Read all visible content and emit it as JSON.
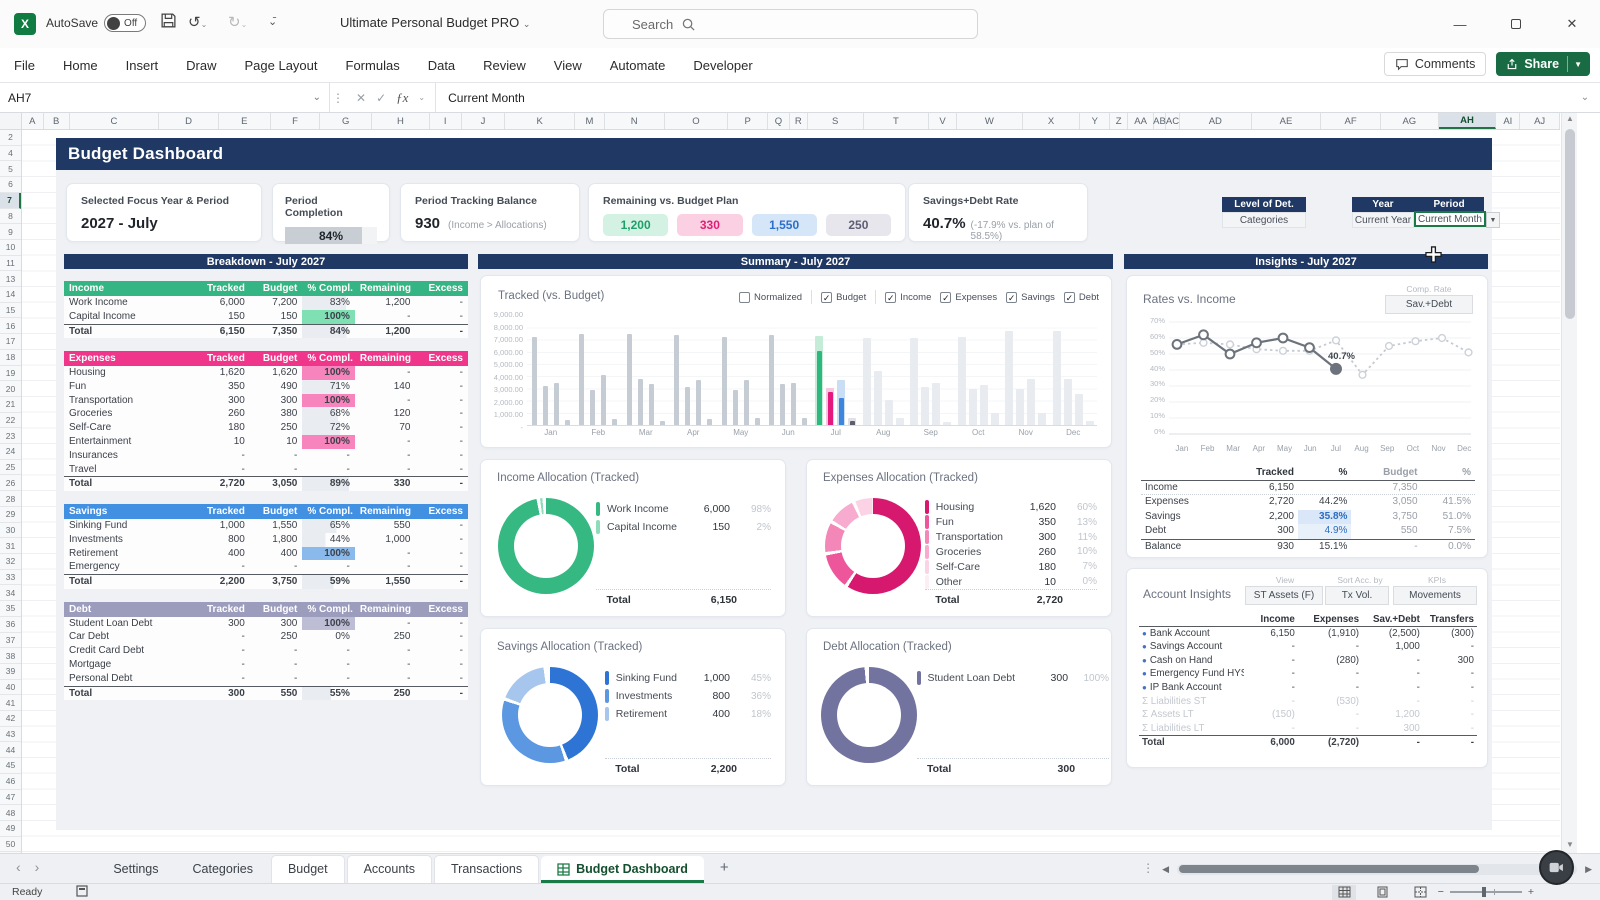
{
  "titlebar": {
    "autosave_label": "AutoSave",
    "autosave_state": "Off",
    "doc_title": "Ultimate Personal Budget PRO",
    "search_placeholder": "Search"
  },
  "ribbon": {
    "tabs": [
      "File",
      "Home",
      "Insert",
      "Draw",
      "Page Layout",
      "Formulas",
      "Data",
      "Review",
      "View",
      "Automate",
      "Developer"
    ],
    "comments_label": "Comments",
    "share_label": "Share"
  },
  "formula_bar": {
    "name_box": "AH7",
    "value": "Current Month"
  },
  "grid": {
    "columns": [
      "A",
      "B",
      "C",
      "D",
      "E",
      "F",
      "G",
      "H",
      "I",
      "J",
      "K",
      "M",
      "N",
      "O",
      "P",
      "Q",
      "R",
      "S",
      "T",
      "V",
      "W",
      "X",
      "Y",
      "Z",
      "AA",
      "AB",
      "AC",
      "AD",
      "AE",
      "AF",
      "AG",
      "AH",
      "AI",
      "AJ"
    ],
    "active_column": "AH",
    "row_start": 2,
    "row_end": 50,
    "hidden_rows": [
      3,
      12,
      27
    ],
    "active_row": 7
  },
  "dashboard": {
    "title": "Budget Dashboard",
    "kpis": {
      "focus": {
        "label": "Selected Focus Year & Period",
        "value": "2027 - July"
      },
      "completion": {
        "label": "Period Completion",
        "value": "84%",
        "pct": 84
      },
      "balance": {
        "label": "Period Tracking Balance",
        "value": "930",
        "note": "(Income > Allocations)"
      },
      "remaining": {
        "label": "Remaining vs. Budget Plan",
        "chips": [
          {
            "value": "1,200",
            "color": "green"
          },
          {
            "value": "330",
            "color": "pink"
          },
          {
            "value": "1,550",
            "color": "blue"
          },
          {
            "value": "250",
            "color": "gray"
          }
        ]
      },
      "rate": {
        "label": "Savings+Debt Rate",
        "value": "40.7%",
        "note": "(-17.9% vs. plan of 58.5%)"
      }
    },
    "selectors": {
      "detail": {
        "label": "Level of Det.",
        "value": "Categories"
      },
      "year": {
        "label": "Year",
        "value": "Current Year"
      },
      "period": {
        "label": "Period",
        "value": "Current Month"
      }
    },
    "breakdown": {
      "title": "Breakdown - July 2027",
      "columns": [
        "Tracked",
        "Budget",
        "% Compl.",
        "Remaining",
        "Excess"
      ],
      "sections": [
        {
          "name": "Income",
          "theme": "green",
          "rows": [
            {
              "label": "Work Income",
              "tracked": "6,000",
              "budget": "7,200",
              "compl": "83%",
              "pct": 83,
              "remaining": "1,200",
              "excess": "-"
            },
            {
              "label": "Capital Income",
              "tracked": "150",
              "budget": "150",
              "compl": "100%",
              "pct": 100,
              "remaining": "-",
              "excess": "-"
            }
          ],
          "total": {
            "label": "Total",
            "tracked": "6,150",
            "budget": "7,350",
            "compl": "84%",
            "pct": 84,
            "remaining": "1,200",
            "excess": "-"
          }
        },
        {
          "name": "Expenses",
          "theme": "pink",
          "rows": [
            {
              "label": "Housing",
              "tracked": "1,620",
              "budget": "1,620",
              "compl": "100%",
              "pct": 100,
              "remaining": "-",
              "excess": "-"
            },
            {
              "label": "Fun",
              "tracked": "350",
              "budget": "490",
              "compl": "71%",
              "pct": 71,
              "remaining": "140",
              "excess": "-"
            },
            {
              "label": "Transportation",
              "tracked": "300",
              "budget": "300",
              "compl": "100%",
              "pct": 100,
              "remaining": "-",
              "excess": "-"
            },
            {
              "label": "Groceries",
              "tracked": "260",
              "budget": "380",
              "compl": "68%",
              "pct": 68,
              "remaining": "120",
              "excess": "-"
            },
            {
              "label": "Self-Care",
              "tracked": "180",
              "budget": "250",
              "compl": "72%",
              "pct": 72,
              "remaining": "70",
              "excess": "-"
            },
            {
              "label": "Entertainment",
              "tracked": "10",
              "budget": "10",
              "compl": "100%",
              "pct": 100,
              "remaining": "-",
              "excess": "-"
            },
            {
              "label": "Insurances",
              "tracked": "-",
              "budget": "-",
              "compl": "-",
              "pct": 0,
              "remaining": "-",
              "excess": "-"
            },
            {
              "label": "Travel",
              "tracked": "-",
              "budget": "-",
              "compl": "-",
              "pct": 0,
              "remaining": "-",
              "excess": "-"
            }
          ],
          "total": {
            "label": "Total",
            "tracked": "2,720",
            "budget": "3,050",
            "compl": "89%",
            "pct": 89,
            "remaining": "330",
            "excess": "-"
          }
        },
        {
          "name": "Savings",
          "theme": "blue",
          "rows": [
            {
              "label": "Sinking Fund",
              "tracked": "1,000",
              "budget": "1,550",
              "compl": "65%",
              "pct": 65,
              "remaining": "550",
              "excess": "-"
            },
            {
              "label": "Investments",
              "tracked": "800",
              "budget": "1,800",
              "compl": "44%",
              "pct": 44,
              "remaining": "1,000",
              "excess": "-"
            },
            {
              "label": "Retirement",
              "tracked": "400",
              "budget": "400",
              "compl": "100%",
              "pct": 100,
              "remaining": "-",
              "excess": "-"
            },
            {
              "label": "Emergency",
              "tracked": "-",
              "budget": "-",
              "compl": "-",
              "pct": 0,
              "remaining": "-",
              "excess": "-"
            }
          ],
          "total": {
            "label": "Total",
            "tracked": "2,200",
            "budget": "3,750",
            "compl": "59%",
            "pct": 59,
            "remaining": "1,550",
            "excess": "-"
          }
        },
        {
          "name": "Debt",
          "theme": "debt",
          "rows": [
            {
              "label": "Student Loan Debt",
              "tracked": "300",
              "budget": "300",
              "compl": "100%",
              "pct": 100,
              "remaining": "-",
              "excess": "-"
            },
            {
              "label": "Car Debt",
              "tracked": "-",
              "budget": "250",
              "compl": "0%",
              "pct": 0,
              "remaining": "250",
              "excess": "-"
            },
            {
              "label": "Credit Card Debt",
              "tracked": "-",
              "budget": "-",
              "compl": "-",
              "pct": 0,
              "remaining": "-",
              "excess": "-"
            },
            {
              "label": "Mortgage",
              "tracked": "-",
              "budget": "-",
              "compl": "-",
              "pct": 0,
              "remaining": "-",
              "excess": "-"
            },
            {
              "label": "Personal Debt",
              "tracked": "-",
              "budget": "-",
              "compl": "-",
              "pct": 0,
              "remaining": "-",
              "excess": "-"
            }
          ],
          "total": {
            "label": "Total",
            "tracked": "300",
            "budget": "550",
            "compl": "55%",
            "pct": 55,
            "remaining": "250",
            "excess": "-"
          }
        }
      ]
    },
    "summary": {
      "title": "Summary - July 2027",
      "chart_title": "Tracked (vs. Budget)",
      "checkbox_groups": [
        [
          {
            "label": "Normalized",
            "checked": false
          }
        ],
        [
          {
            "label": "Budget",
            "checked": true
          }
        ],
        [
          {
            "label": "Income",
            "checked": true
          },
          {
            "label": "Expenses",
            "checked": true
          },
          {
            "label": "Savings",
            "checked": true
          },
          {
            "label": "Debt",
            "checked": true
          }
        ]
      ]
    },
    "allocations": [
      {
        "title": "Income Allocation (Tracked)",
        "palette": [
          "#35b881",
          "#8fdcba"
        ],
        "total_label": "Total",
        "total": "6,150",
        "items": [
          {
            "name": "Work Income",
            "value": "6,000",
            "pct": "98%",
            "num": 98
          },
          {
            "name": "Capital Income",
            "value": "150",
            "pct": "2%",
            "num": 2
          }
        ]
      },
      {
        "title": "Expenses Allocation (Tracked)",
        "palette": [
          "#d6186f",
          "#ee569c",
          "#f387b8",
          "#f7abce",
          "#fbd3e5",
          "#fdedf4"
        ],
        "total_label": "Total",
        "total": "2,720",
        "items": [
          {
            "name": "Housing",
            "value": "1,620",
            "pct": "60%",
            "num": 60
          },
          {
            "name": "Fun",
            "value": "350",
            "pct": "13%",
            "num": 13
          },
          {
            "name": "Transportation",
            "value": "300",
            "pct": "11%",
            "num": 11
          },
          {
            "name": "Groceries",
            "value": "260",
            "pct": "10%",
            "num": 10
          },
          {
            "name": "Self-Care",
            "value": "180",
            "pct": "7%",
            "num": 7
          },
          {
            "name": "Other",
            "value": "10",
            "pct": "0%",
            "num": 0.5
          }
        ]
      },
      {
        "title": "Savings Allocation (Tracked)",
        "palette": [
          "#2d74d4",
          "#5c97e2",
          "#a6c6ee"
        ],
        "total_label": "Total",
        "total": "2,200",
        "items": [
          {
            "name": "Sinking Fund",
            "value": "1,000",
            "pct": "45%",
            "num": 45
          },
          {
            "name": "Investments",
            "value": "800",
            "pct": "36%",
            "num": 36
          },
          {
            "name": "Retirement",
            "value": "400",
            "pct": "18%",
            "num": 18
          }
        ]
      },
      {
        "title": "Debt Allocation (Tracked)",
        "palette": [
          "#72739e"
        ],
        "total_label": "Total",
        "total": "300",
        "items": [
          {
            "name": "Student Loan Debt",
            "value": "300",
            "pct": "100%",
            "num": 100
          }
        ]
      }
    ],
    "insights": {
      "title": "Insights - July 2027",
      "rates": {
        "title": "Rates vs. Income",
        "comp_label": "Comp. Rate",
        "comp_value": "Sav.+Debt"
      },
      "rates_table": {
        "columns": [
          "Tracked",
          "%",
          "Budget",
          "%"
        ],
        "rows": [
          {
            "label": "Income",
            "tracked": "6,150",
            "pct": "",
            "budget": "7,350",
            "bpct": "",
            "dotted": true
          },
          {
            "label": "Expenses",
            "tracked": "2,720",
            "pct": "44.2%",
            "budget": "3,050",
            "bpct": "41.5%"
          },
          {
            "label": "Savings",
            "tracked": "2,200",
            "pct": "35.8%",
            "budget": "3,750",
            "bpct": "51.0%",
            "hl": "hl"
          },
          {
            "label": "Debt",
            "tracked": "300",
            "pct": "4.9%",
            "budget": "550",
            "bpct": "7.5%",
            "hl": "hl2"
          },
          {
            "label": "Balance",
            "tracked": "930",
            "pct": "15.1%",
            "budget": "-",
            "bpct": "0.0%",
            "topline": true
          }
        ]
      },
      "accounts": {
        "title": "Account Insights",
        "view_label": "View",
        "view_value": "ST Assets (F)",
        "sort_label": "Sort Acc. by",
        "sort_value": "Tx Vol.",
        "kpis_label": "KPIs",
        "kpis_value": "Movements",
        "columns": [
          "Income",
          "Expenses",
          "Sav.+Debt",
          "Transfers"
        ],
        "rows": [
          {
            "label": "Bank Account",
            "bullet": true,
            "values": [
              "6,150",
              "(1,910)",
              "(2,500)",
              "(300)"
            ]
          },
          {
            "label": "Savings Account",
            "bullet": true,
            "values": [
              "-",
              "-",
              "1,000",
              "-"
            ]
          },
          {
            "label": "Cash on Hand",
            "bullet": true,
            "values": [
              "-",
              "(280)",
              "-",
              "300"
            ]
          },
          {
            "label": "Emergency Fund HYSA",
            "bullet": true,
            "values": [
              "-",
              "-",
              "-",
              "-"
            ]
          },
          {
            "label": "IP Bank Account",
            "bullet": true,
            "values": [
              "-",
              "-",
              "-",
              "-"
            ]
          },
          {
            "label": "Liabilities ST",
            "sigma": true,
            "muted": true,
            "values": [
              "-",
              "(530)",
              "-",
              "-"
            ]
          },
          {
            "label": "Assets LT",
            "sigma": true,
            "muted": true,
            "values": [
              "(150)",
              "-",
              "1,200",
              "-"
            ]
          },
          {
            "label": "Liabilities LT",
            "sigma": true,
            "muted": true,
            "values": [
              "-",
              "-",
              "300",
              "-"
            ]
          }
        ],
        "total": {
          "label": "Total",
          "values": [
            "6,000",
            "(2,720)",
            "-",
            "-"
          ]
        }
      }
    }
  },
  "sheet_tabs": {
    "tabs": [
      {
        "label": "Settings",
        "style": "flat"
      },
      {
        "label": "Categories",
        "style": "flat"
      },
      {
        "label": "Budget",
        "style": "card"
      },
      {
        "label": "Accounts",
        "style": "card"
      },
      {
        "label": "Transactions",
        "style": "card"
      },
      {
        "label": "Budget Dashboard",
        "style": "active"
      }
    ],
    "add_label": "+"
  },
  "status_bar": {
    "ready": "Ready"
  },
  "colors": {
    "navy": "#1f3864",
    "excel_green": "#196b43",
    "income_green": "#35b583",
    "expense_pink": "#f0368b",
    "savings_blue": "#4290e2",
    "debt_gray": "#9c9cbd",
    "panel_bg": "#eff1f5"
  },
  "chart_data": [
    {
      "type": "bar",
      "title": "Tracked (vs. Budget)",
      "categories": [
        "Jan",
        "Feb",
        "Mar",
        "Apr",
        "May",
        "Jun",
        "Jul",
        "Aug",
        "Sep",
        "Oct",
        "Nov",
        "Dec"
      ],
      "series_names": [
        "Income",
        "Expenses",
        "Savings",
        "Debt"
      ],
      "tracked": [
        [
          7300,
          3200,
          3500,
          400
        ],
        [
          7500,
          2900,
          4100,
          500
        ],
        [
          7500,
          3800,
          3400,
          350
        ],
        [
          7400,
          3100,
          3700,
          500
        ],
        [
          7250,
          2900,
          3750,
          550
        ],
        [
          7400,
          3350,
          3500,
          600
        ],
        [
          6150,
          2720,
          2200,
          300
        ],
        null,
        null,
        null,
        null,
        null
      ],
      "budget": [
        null,
        null,
        null,
        null,
        null,
        null,
        [
          7350,
          3050,
          3750,
          550
        ],
        [
          7200,
          4500,
          2100,
          550
        ],
        [
          7200,
          3100,
          3500,
          250
        ],
        [
          7300,
          2950,
          3300,
          1000
        ],
        [
          7750,
          3000,
          3800,
          1000
        ],
        [
          7750,
          3800,
          2600,
          350
        ]
      ],
      "ylim": [
        0,
        9000
      ],
      "yticks": [
        "9,000.00",
        "8,000.00",
        "7,000.00",
        "6,000.00",
        "5,000.00",
        "4,000.00",
        "3,000.00",
        "2,000.00",
        "1,000.00",
        "-"
      ],
      "highlight_month": "Jul",
      "palette": {
        "tracked_colored": [
          "#2db87e",
          "#e3197d",
          "#3e86dd",
          "#5c5f6b"
        ],
        "budget_pastel": [
          "#c4ecd9",
          "#f8c7de",
          "#c9def5",
          "#dfe1e7"
        ],
        "past": "#c6ccd4",
        "future": "#e8ebef"
      },
      "legend_position": "none",
      "grid": true
    },
    {
      "type": "line",
      "title": "Rates vs. Income",
      "categories": [
        "Jan",
        "Feb",
        "Mar",
        "Apr",
        "May",
        "Jun",
        "Jul",
        "Aug",
        "Sep",
        "Oct",
        "Nov",
        "Dec"
      ],
      "series": [
        {
          "name": "Tracked rate",
          "style": "solid",
          "values": [
            56,
            62,
            50,
            57,
            60,
            54,
            40.7,
            null,
            null,
            null,
            null,
            null
          ]
        },
        {
          "name": "Plan rate",
          "style": "dotted",
          "values": [
            56,
            57,
            56,
            53,
            52,
            52,
            58.5,
            37,
            55,
            58,
            60,
            51
          ]
        }
      ],
      "ylim": [
        0,
        70
      ],
      "yticks": [
        "70%",
        "60%",
        "50%",
        "40%",
        "30%",
        "20%",
        "10%",
        "0%"
      ],
      "annotation": {
        "x": "Jul",
        "text": "40.7%"
      },
      "grid": true,
      "legend_position": "none"
    }
  ]
}
